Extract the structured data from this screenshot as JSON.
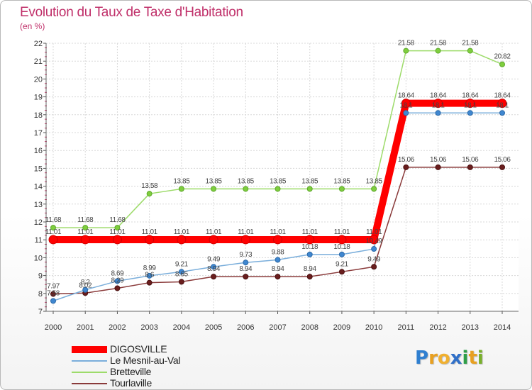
{
  "title": "Evolution du Taux de Taxe d'Habitation",
  "unit": "(en %)",
  "logo": {
    "text": "Proxiti",
    "letters": [
      "P",
      "r",
      "o",
      "x",
      "i",
      "t",
      "i"
    ],
    "colors": [
      "#2f7fd0",
      "#e8a020",
      "#f0b030",
      "#3070c8",
      "#2e9e48",
      "#e8a020",
      "#78b02a"
    ]
  },
  "chart_data": {
    "type": "line",
    "title": "Evolution du Taux de Taxe d'Habitation",
    "ylabel": "(en %)",
    "xlabel": "",
    "x": [
      "2000",
      "2001",
      "2002",
      "2003",
      "2004",
      "2005",
      "2006",
      "2007",
      "2008",
      "2009",
      "2010",
      "2011",
      "2012",
      "2013",
      "2014"
    ],
    "ylim": [
      7,
      22
    ],
    "yticks": [
      "7",
      "8",
      "9",
      "10",
      "11",
      "12",
      "13",
      "14",
      "15",
      "16",
      "17",
      "18",
      "19",
      "20",
      "21",
      "22"
    ],
    "grid": true,
    "legend": "bottom-left",
    "series": [
      {
        "name": "DIGOSVILLE",
        "color": "#ff0000",
        "values": [
          11.01,
          11.01,
          11.01,
          11.01,
          11.01,
          11.01,
          11.01,
          11.01,
          11.01,
          11.01,
          11.01,
          18.64,
          18.64,
          18.64,
          18.64
        ],
        "labels": [
          "11.01",
          "11.01",
          "11.01",
          "11.01",
          "11.01",
          "11.01",
          "11.01",
          "11.01",
          "11.01",
          "11.01",
          "11.01",
          "18.64",
          "18.64",
          "18.64",
          "18.64"
        ]
      },
      {
        "name": "Le Mesnil-au-Val",
        "color": "#5a9bd5",
        "values": [
          7.58,
          8.2,
          8.69,
          8.99,
          9.21,
          9.49,
          9.73,
          9.88,
          10.18,
          10.18,
          10.49,
          18.1,
          18.1,
          18.1,
          18.1
        ],
        "labels": [
          "7.58",
          "8.2",
          "8.69",
          "8.99",
          "9.21",
          "9.49",
          "9.73",
          "9.88",
          "10.18",
          "10.18",
          "10.49",
          "18.1",
          "18.1",
          "18.1",
          "18.1"
        ]
      },
      {
        "name": "Bretteville",
        "color": "#88d050",
        "values": [
          11.68,
          11.68,
          11.68,
          13.58,
          13.85,
          13.85,
          13.85,
          13.85,
          13.85,
          13.85,
          13.85,
          21.58,
          21.58,
          21.58,
          20.82
        ],
        "labels": [
          "11.68",
          "11.68",
          "11.68",
          "13.58",
          "13.85",
          "13.85",
          "13.85",
          "13.85",
          "13.85",
          "13.85",
          "13.85",
          "21.58",
          "21.58",
          "21.58",
          "20.82"
        ]
      },
      {
        "name": "Tourlaville",
        "color": "#7a2a2a",
        "values": [
          7.97,
          8.02,
          8.29,
          8.6,
          8.65,
          8.94,
          8.94,
          8.94,
          8.94,
          9.21,
          9.49,
          15.06,
          15.06,
          15.06,
          15.06
        ],
        "labels": [
          "7.97",
          "8.02",
          "8.29",
          "8.6",
          "8.65",
          "8.94",
          "8.94",
          "8.94",
          "8.94",
          "9.21",
          "9.49",
          "15.06",
          "15.06",
          "15.06",
          "15.06"
        ]
      }
    ]
  }
}
